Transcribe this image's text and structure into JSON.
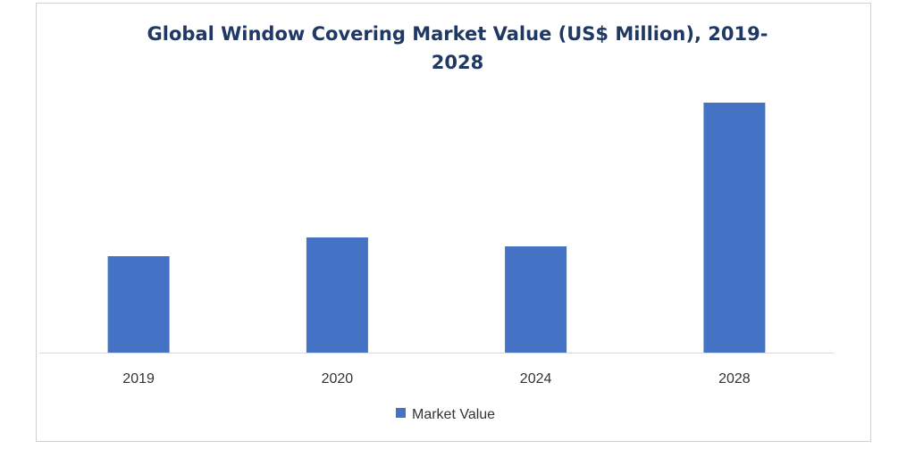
{
  "chart_data": {
    "type": "bar",
    "title": "Global Window Covering Market Value (US$ Million), 2019-2028",
    "categories": [
      "2019",
      "2020",
      "2024",
      "2028"
    ],
    "series": [
      {
        "name": "Market Value",
        "values": [
          108,
          129,
          119,
          280
        ],
        "color": "#4472c4"
      }
    ],
    "xlabel": "",
    "ylabel": "",
    "ylim": [
      0,
      300
    ],
    "grid": false,
    "legend": "bottom",
    "axis_color": "#d9d9d9"
  }
}
